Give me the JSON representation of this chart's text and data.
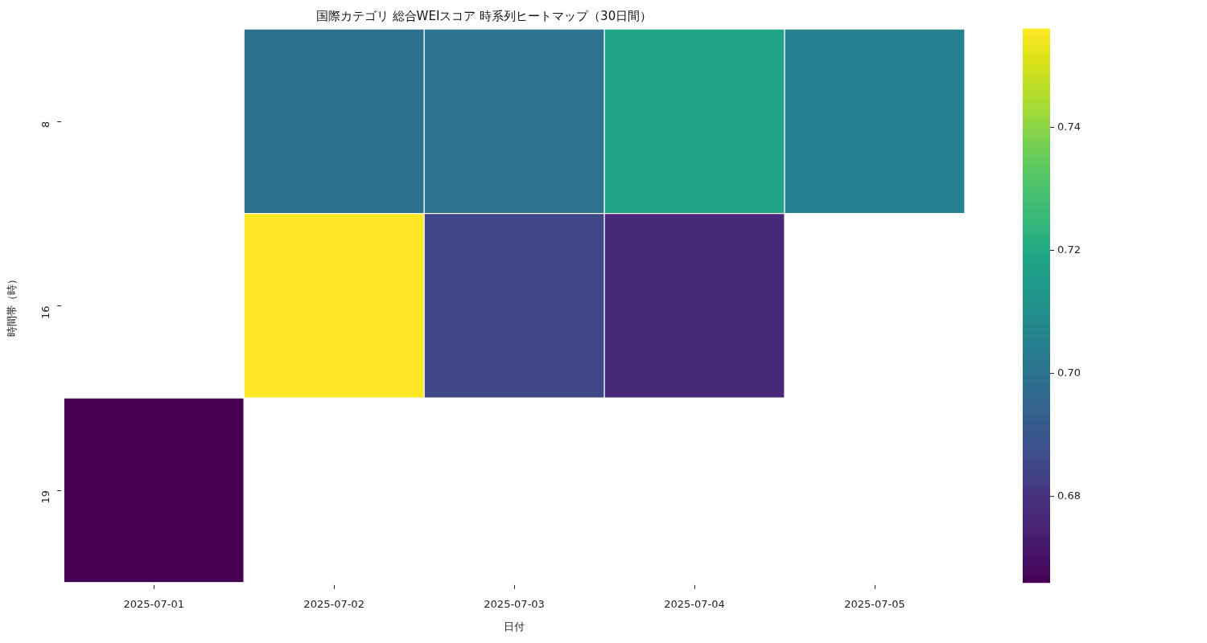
{
  "chart_data": {
    "type": "heatmap",
    "title": "国際カテゴリ 総合WEIスコア 時系列ヒートマップ（30日間）",
    "xlabel": "日付",
    "ylabel": "時間帯（時）",
    "categories": [
      "2025-07-01",
      "2025-07-02",
      "2025-07-03",
      "2025-07-04",
      "2025-07-05"
    ],
    "y_categories": [
      "8",
      "16",
      "19"
    ],
    "cells": [
      [
        null,
        0.699,
        0.7,
        0.718,
        0.705
      ],
      [
        null,
        0.756,
        0.685,
        0.677,
        null
      ],
      [
        0.666,
        null,
        null,
        null,
        null
      ]
    ],
    "clim": [
      0.666,
      0.756
    ],
    "cticks": [
      0.68,
      {
        "value": 0.7,
        "label": "0.70"
      },
      0.72,
      0.74
    ]
  }
}
